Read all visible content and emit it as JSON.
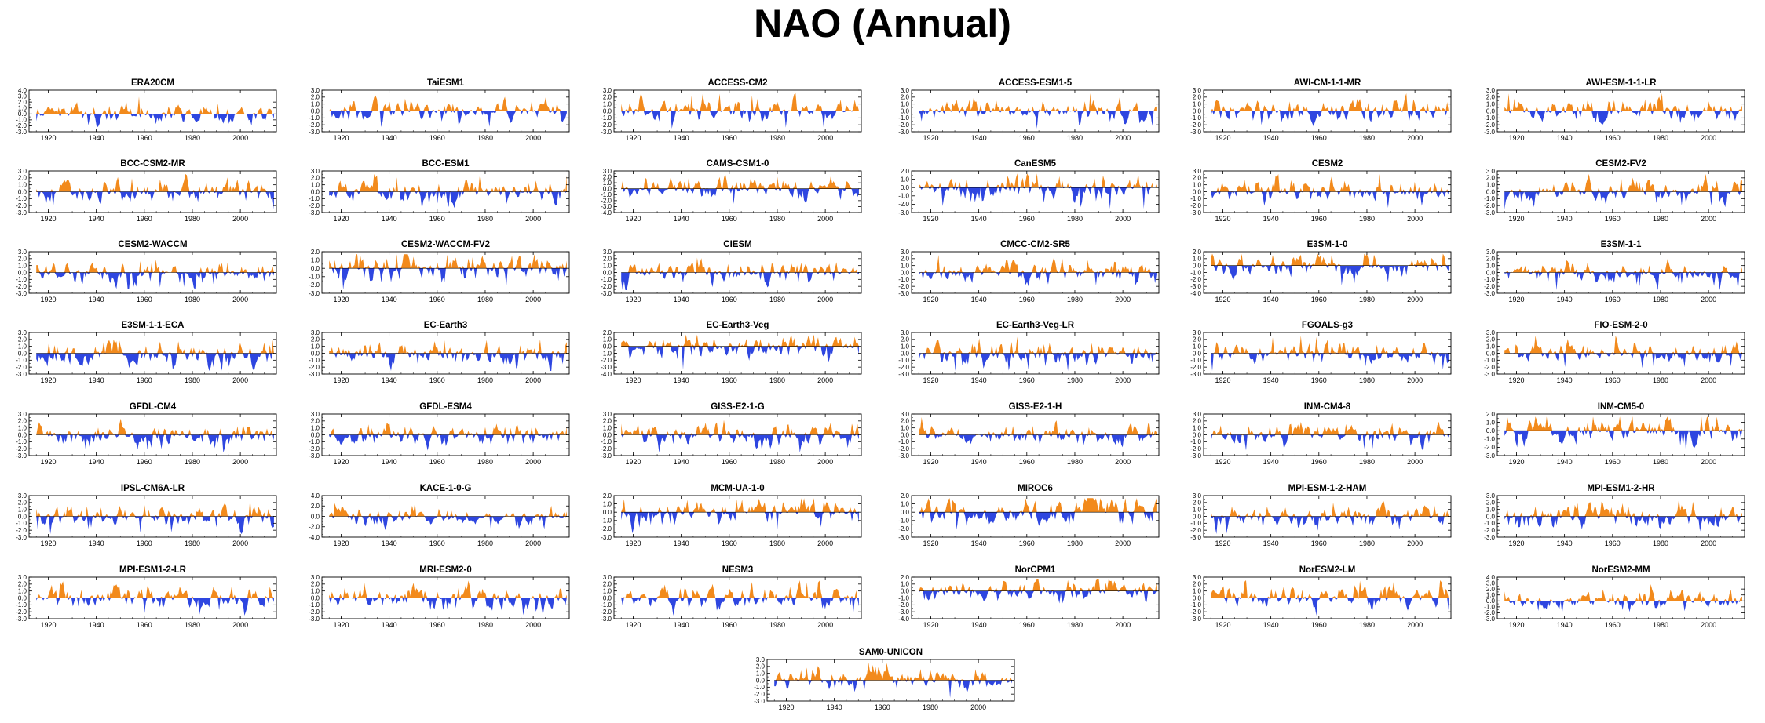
{
  "title": "NAO (Annual)",
  "colors": {
    "positive": "#f28a1c",
    "negative": "#2e46e0",
    "axis": "#000000"
  },
  "chart_data": {
    "type": "area",
    "layout": "grid of 43 panels, 6 columns x 7 rows plus one centered panel",
    "x_tick_labels": [
      "1920",
      "1940",
      "1960",
      "1980",
      "2000"
    ],
    "xlim": [
      1912,
      2015
    ],
    "fill_above_zero": "orange",
    "fill_below_zero": "blue",
    "panels": [
      {
        "title": "ERA20CM",
        "yticks": [
          "4.0",
          "3.0",
          "2.0",
          "1.0",
          "0.0",
          "-1.0",
          "-2.0",
          "-3.0"
        ],
        "ylim": [
          -3,
          4
        ]
      },
      {
        "title": "TaiESM1",
        "yticks": [
          "3.0",
          "2.0",
          "1.0",
          "0.0",
          "-1.0",
          "-2.0",
          "-3.0"
        ],
        "ylim": [
          -3,
          3
        ]
      },
      {
        "title": "ACCESS-CM2",
        "yticks": [
          "3.0",
          "2.0",
          "1.0",
          "0.0",
          "-1.0",
          "-2.0",
          "-3.0"
        ],
        "ylim": [
          -3,
          3
        ]
      },
      {
        "title": "ACCESS-ESM1-5",
        "yticks": [
          "3.0",
          "2.0",
          "1.0",
          "0.0",
          "-1.0",
          "-2.0",
          "-3.0"
        ],
        "ylim": [
          -3,
          3
        ]
      },
      {
        "title": "AWI-CM-1-1-MR",
        "yticks": [
          "3.0",
          "2.0",
          "1.0",
          "0.0",
          "-1.0",
          "-2.0",
          "-3.0"
        ],
        "ylim": [
          -3,
          3
        ]
      },
      {
        "title": "AWI-ESM-1-1-LR",
        "yticks": [
          "3.0",
          "2.0",
          "1.0",
          "0.0",
          "-1.0",
          "-2.0",
          "-3.0"
        ],
        "ylim": [
          -3,
          3
        ]
      },
      {
        "title": "BCC-CSM2-MR",
        "yticks": [
          "3.0",
          "2.0",
          "1.0",
          "0.0",
          "-1.0",
          "-2.0",
          "-3.0"
        ],
        "ylim": [
          -3,
          3
        ]
      },
      {
        "title": "BCC-ESM1",
        "yticks": [
          "3.0",
          "2.0",
          "1.0",
          "0.0",
          "-1.0",
          "-2.0",
          "-3.0"
        ],
        "ylim": [
          -3,
          3
        ]
      },
      {
        "title": "CAMS-CSM1-0",
        "yticks": [
          "3.0",
          "2.0",
          "1.0",
          "0.0",
          "-1.0",
          "-2.0",
          "-3.0",
          "-4.0"
        ],
        "ylim": [
          -4,
          3
        ]
      },
      {
        "title": "CanESM5",
        "yticks": [
          "2.0",
          "1.0",
          "0.0",
          "-1.0",
          "-2.0",
          "-3.0"
        ],
        "ylim": [
          -3,
          2
        ]
      },
      {
        "title": "CESM2",
        "yticks": [
          "3.0",
          "2.0",
          "1.0",
          "0.0",
          "-1.0",
          "-2.0",
          "-3.0"
        ],
        "ylim": [
          -3,
          3
        ]
      },
      {
        "title": "CESM2-FV2",
        "yticks": [
          "3.0",
          "2.0",
          "1.0",
          "0.0",
          "-1.0",
          "-2.0",
          "-3.0"
        ],
        "ylim": [
          -3,
          3
        ]
      },
      {
        "title": "CESM2-WACCM",
        "yticks": [
          "3.0",
          "2.0",
          "1.0",
          "0.0",
          "-1.0",
          "-2.0",
          "-3.0"
        ],
        "ylim": [
          -3,
          3
        ]
      },
      {
        "title": "CESM2-WACCM-FV2",
        "yticks": [
          "2.0",
          "1.0",
          "0.0",
          "-1.0",
          "-2.0",
          "-3.0"
        ],
        "ylim": [
          -3,
          2
        ]
      },
      {
        "title": "CIESM",
        "yticks": [
          "3.0",
          "2.0",
          "1.0",
          "0.0",
          "-1.0",
          "-2.0",
          "-3.0"
        ],
        "ylim": [
          -3,
          3
        ]
      },
      {
        "title": "CMCC-CM2-SR5",
        "yticks": [
          "3.0",
          "2.0",
          "1.0",
          "0.0",
          "-1.0",
          "-2.0",
          "-3.0"
        ],
        "ylim": [
          -3,
          3
        ]
      },
      {
        "title": "E3SM-1-0",
        "yticks": [
          "2.0",
          "1.0",
          "0.0",
          "-1.0",
          "-2.0",
          "-3.0",
          "-4.0"
        ],
        "ylim": [
          -4,
          2
        ]
      },
      {
        "title": "E3SM-1-1",
        "yticks": [
          "3.0",
          "2.0",
          "1.0",
          "0.0",
          "-1.0",
          "-2.0",
          "-3.0"
        ],
        "ylim": [
          -3,
          3
        ]
      },
      {
        "title": "E3SM-1-1-ECA",
        "yticks": [
          "3.0",
          "2.0",
          "1.0",
          "0.0",
          "-1.0",
          "-2.0",
          "-3.0"
        ],
        "ylim": [
          -3,
          3
        ]
      },
      {
        "title": "EC-Earth3",
        "yticks": [
          "3.0",
          "2.0",
          "1.0",
          "0.0",
          "-1.0",
          "-2.0",
          "-3.0"
        ],
        "ylim": [
          -3,
          3
        ]
      },
      {
        "title": "EC-Earth3-Veg",
        "yticks": [
          "2.0",
          "1.0",
          "0.0",
          "-1.0",
          "-2.0",
          "-3.0",
          "-4.0"
        ],
        "ylim": [
          -4,
          2
        ]
      },
      {
        "title": "EC-Earth3-Veg-LR",
        "yticks": [
          "3.0",
          "2.0",
          "1.0",
          "0.0",
          "-1.0",
          "-2.0",
          "-3.0"
        ],
        "ylim": [
          -3,
          3
        ]
      },
      {
        "title": "FGOALS-g3",
        "yticks": [
          "3.0",
          "2.0",
          "1.0",
          "0.0",
          "-1.0",
          "-2.0",
          "-3.0"
        ],
        "ylim": [
          -3,
          3
        ]
      },
      {
        "title": "FIO-ESM-2-0",
        "yticks": [
          "3.0",
          "2.0",
          "1.0",
          "0.0",
          "-1.0",
          "-2.0",
          "-3.0"
        ],
        "ylim": [
          -3,
          3
        ]
      },
      {
        "title": "GFDL-CM4",
        "yticks": [
          "3.0",
          "2.0",
          "1.0",
          "0.0",
          "-1.0",
          "-2.0",
          "-3.0"
        ],
        "ylim": [
          -3,
          3
        ]
      },
      {
        "title": "GFDL-ESM4",
        "yticks": [
          "3.0",
          "2.0",
          "1.0",
          "0.0",
          "-1.0",
          "-2.0",
          "-3.0"
        ],
        "ylim": [
          -3,
          3
        ]
      },
      {
        "title": "GISS-E2-1-G",
        "yticks": [
          "3.0",
          "2.0",
          "1.0",
          "0.0",
          "-1.0",
          "-2.0",
          "-3.0"
        ],
        "ylim": [
          -3,
          3
        ]
      },
      {
        "title": "GISS-E2-1-H",
        "yticks": [
          "3.0",
          "2.0",
          "1.0",
          "0.0",
          "-1.0",
          "-2.0",
          "-3.0"
        ],
        "ylim": [
          -3,
          3
        ]
      },
      {
        "title": "INM-CM4-8",
        "yticks": [
          "3.0",
          "2.0",
          "1.0",
          "0.0",
          "-1.0",
          "-2.0",
          "-3.0"
        ],
        "ylim": [
          -3,
          3
        ]
      },
      {
        "title": "INM-CM5-0",
        "yticks": [
          "2.0",
          "1.0",
          "0.0",
          "-1.0",
          "-2.0",
          "-3.0"
        ],
        "ylim": [
          -3,
          2
        ]
      },
      {
        "title": "IPSL-CM6A-LR",
        "yticks": [
          "3.0",
          "2.0",
          "1.0",
          "0.0",
          "-1.0",
          "-2.0",
          "-3.0"
        ],
        "ylim": [
          -3,
          3
        ]
      },
      {
        "title": "KACE-1-0-G",
        "yticks": [
          "4.0",
          "2.0",
          "0.0",
          "-2.0",
          "-4.0"
        ],
        "ylim": [
          -4,
          4
        ]
      },
      {
        "title": "MCM-UA-1-0",
        "yticks": [
          "2.0",
          "1.0",
          "0.0",
          "-1.0",
          "-2.0",
          "-3.0"
        ],
        "ylim": [
          -3,
          2
        ]
      },
      {
        "title": "MIROC6",
        "yticks": [
          "2.0",
          "1.0",
          "0.0",
          "-1.0",
          "-2.0",
          "-3.0"
        ],
        "ylim": [
          -3,
          2
        ]
      },
      {
        "title": "MPI-ESM-1-2-HAM",
        "yticks": [
          "3.0",
          "2.0",
          "1.0",
          "0.0",
          "-1.0",
          "-2.0",
          "-3.0"
        ],
        "ylim": [
          -3,
          3
        ]
      },
      {
        "title": "MPI-ESM1-2-HR",
        "yticks": [
          "3.0",
          "2.0",
          "1.0",
          "0.0",
          "-1.0",
          "-2.0",
          "-3.0"
        ],
        "ylim": [
          -3,
          3
        ]
      },
      {
        "title": "MPI-ESM1-2-LR",
        "yticks": [
          "3.0",
          "2.0",
          "1.0",
          "0.0",
          "-1.0",
          "-2.0",
          "-3.0"
        ],
        "ylim": [
          -3,
          3
        ]
      },
      {
        "title": "MRI-ESM2-0",
        "yticks": [
          "3.0",
          "2.0",
          "1.0",
          "0.0",
          "-1.0",
          "-2.0",
          "-3.0"
        ],
        "ylim": [
          -3,
          3
        ]
      },
      {
        "title": "NESM3",
        "yticks": [
          "3.0",
          "2.0",
          "1.0",
          "0.0",
          "-1.0",
          "-2.0",
          "-3.0"
        ],
        "ylim": [
          -3,
          3
        ]
      },
      {
        "title": "NorCPM1",
        "yticks": [
          "2.0",
          "1.0",
          "0.0",
          "-1.0",
          "-2.0",
          "-3.0",
          "-4.0"
        ],
        "ylim": [
          -4,
          2
        ]
      },
      {
        "title": "NorESM2-LM",
        "yticks": [
          "3.0",
          "2.0",
          "1.0",
          "0.0",
          "-1.0",
          "-2.0",
          "-3.0"
        ],
        "ylim": [
          -3,
          3
        ]
      },
      {
        "title": "NorESM2-MM",
        "yticks": [
          "4.0",
          "3.0",
          "2.0",
          "1.0",
          "0.0",
          "-1.0",
          "-2.0",
          "-3.0"
        ],
        "ylim": [
          -3,
          4
        ]
      },
      {
        "title": "SAM0-UNICON",
        "yticks": [
          "3.0",
          "2.0",
          "1.0",
          "0.0",
          "-1.0",
          "-2.0",
          "-3.0"
        ],
        "ylim": [
          -3,
          3
        ]
      }
    ]
  }
}
